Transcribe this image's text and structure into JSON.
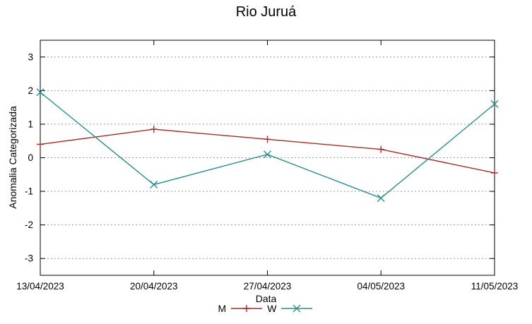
{
  "chart_data": {
    "type": "line",
    "title": "Rio Juruá",
    "xlabel": "Data",
    "ylabel": "Anomalia Categorizada",
    "categories": [
      "13/04/2023",
      "20/04/2023",
      "27/04/2023",
      "04/05/2023",
      "11/05/2023"
    ],
    "series": [
      {
        "name": "M",
        "color": "#a52a2a",
        "marker": "plus",
        "values": [
          0.4,
          0.85,
          0.55,
          0.25,
          -0.45
        ]
      },
      {
        "name": "W",
        "color": "#2e8b8b",
        "marker": "cross",
        "values": [
          1.95,
          -0.8,
          0.1,
          -1.2,
          1.6
        ]
      }
    ],
    "yticks": [
      -3,
      -2,
      -1,
      0,
      1,
      2,
      3
    ],
    "ylim": [
      -3.5,
      3.5
    ],
    "grid": "horizontal-dotted",
    "grid_color": "#999999",
    "axis_color": "#000000",
    "legend_position": "bottom-center"
  }
}
